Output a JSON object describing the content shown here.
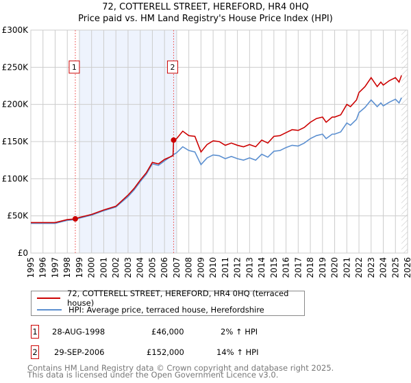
{
  "chart_data": {
    "type": "line",
    "title": "72, COTTERELL STREET, HEREFORD, HR4 0HQ",
    "subtitle": "Price paid vs. HM Land Registry's House Price Index (HPI)",
    "xlim": [
      1995,
      2026
    ],
    "ylim": [
      0,
      300000
    ],
    "yticks": [
      {
        "v": 0,
        "label": "£0"
      },
      {
        "v": 50000,
        "label": "£50K"
      },
      {
        "v": 100000,
        "label": "£100K"
      },
      {
        "v": 150000,
        "label": "£150K"
      },
      {
        "v": 200000,
        "label": "£200K"
      },
      {
        "v": 250000,
        "label": "£250K"
      },
      {
        "v": 300000,
        "label": "£300K"
      }
    ],
    "xticks": [
      "1995",
      "1996",
      "1997",
      "1998",
      "1999",
      "2000",
      "2001",
      "2002",
      "2003",
      "2004",
      "2005",
      "2006",
      "2007",
      "2008",
      "2009",
      "2010",
      "2011",
      "2012",
      "2013",
      "2014",
      "2015",
      "2016",
      "2017",
      "2018",
      "2019",
      "2020",
      "2021",
      "2022",
      "2023",
      "2024",
      "2025",
      "2026"
    ],
    "grid": true,
    "shaded_range": [
      1999,
      2007
    ],
    "forecast_hatch_from": 2025.5,
    "series": [
      {
        "name": "72, COTTERELL STREET, HEREFORD, HR4 0HQ (terraced house)",
        "color": "#cc0000",
        "x": [
          1995,
          1996,
          1997,
          1998,
          1998.66,
          1999,
          2000,
          2001,
          2002,
          2003,
          2003.5,
          2004,
          2004.5,
          2005,
          2005.5,
          2006,
          2006.7,
          2006.75,
          2007,
          2007.5,
          2008,
          2008.5,
          2009,
          2009.5,
          2010,
          2010.5,
          2011,
          2011.5,
          2012,
          2012.5,
          2013,
          2013.5,
          2014,
          2014.5,
          2015,
          2015.5,
          2016,
          2016.5,
          2017,
          2017.5,
          2018,
          2018.5,
          2019,
          2019.3,
          2019.8,
          2020,
          2020.5,
          2021,
          2021.3,
          2021.8,
          2022,
          2022.5,
          2023,
          2023.5,
          2023.8,
          2024,
          2024.5,
          2025,
          2025.3,
          2025.5
        ],
        "y": [
          41,
          41,
          41,
          45,
          46,
          48,
          52,
          58,
          63,
          78,
          87,
          98,
          108,
          122,
          120,
          126,
          131,
          152,
          154,
          164,
          158,
          157,
          136,
          146,
          151,
          150,
          145,
          148,
          145,
          143,
          146,
          143,
          152,
          148,
          157,
          158,
          162,
          166,
          165,
          169,
          176,
          181,
          183,
          176,
          183,
          183,
          186,
          200,
          197,
          206,
          216,
          224,
          236,
          224,
          230,
          226,
          232,
          236,
          230,
          239
        ]
      },
      {
        "name": "HPI: Average price, terraced house, Herefordshire",
        "color": "#5b8fd0",
        "x": [
          1995,
          1996,
          1997,
          1998,
          1998.66,
          1999,
          2000,
          2001,
          2002,
          2003,
          2003.5,
          2004,
          2004.5,
          2005,
          2005.5,
          2006,
          2006.7,
          2007,
          2007.5,
          2008,
          2008.5,
          2009,
          2009.5,
          2010,
          2010.5,
          2011,
          2011.5,
          2012,
          2012.5,
          2013,
          2013.5,
          2014,
          2014.5,
          2015,
          2015.5,
          2016,
          2016.5,
          2017,
          2017.5,
          2018,
          2018.5,
          2019,
          2019.3,
          2019.8,
          2020,
          2020.5,
          2021,
          2021.3,
          2021.8,
          2022,
          2022.5,
          2023,
          2023.5,
          2023.8,
          2024,
          2024.5,
          2025,
          2025.3,
          2025.5
        ],
        "y": [
          40,
          40,
          40,
          44,
          45,
          47,
          51,
          57,
          62,
          76,
          85,
          96,
          106,
          120,
          118,
          124,
          132,
          135,
          143,
          138,
          136,
          119,
          128,
          132,
          131,
          127,
          130,
          127,
          125,
          128,
          125,
          133,
          129,
          137,
          138,
          142,
          145,
          144,
          148,
          154,
          158,
          160,
          154,
          160,
          160,
          163,
          175,
          172,
          180,
          189,
          196,
          206,
          197,
          202,
          198,
          203,
          207,
          202,
          209
        ]
      }
    ],
    "y_units": "£ thousands",
    "sales": [
      {
        "n": "1",
        "x": 1998.66,
        "y": 46
      },
      {
        "n": "2",
        "x": 2006.75,
        "y": 152
      }
    ]
  },
  "legend": {
    "red": "72, COTTERELL STREET, HEREFORD, HR4 0HQ (terraced house)",
    "blue": "HPI: Average price, terraced house, Herefordshire"
  },
  "transactions": [
    {
      "n": "1",
      "date": "28-AUG-1998",
      "price": "£46,000",
      "hpi": "2% ↑ HPI"
    },
    {
      "n": "2",
      "date": "29-SEP-2006",
      "price": "£152,000",
      "hpi": "14% ↑ HPI"
    }
  ],
  "footer": {
    "line1": "Contains HM Land Registry data © Crown copyright and database right 2025.",
    "line2": "This data is licensed under the Open Government Licence v3.0."
  }
}
